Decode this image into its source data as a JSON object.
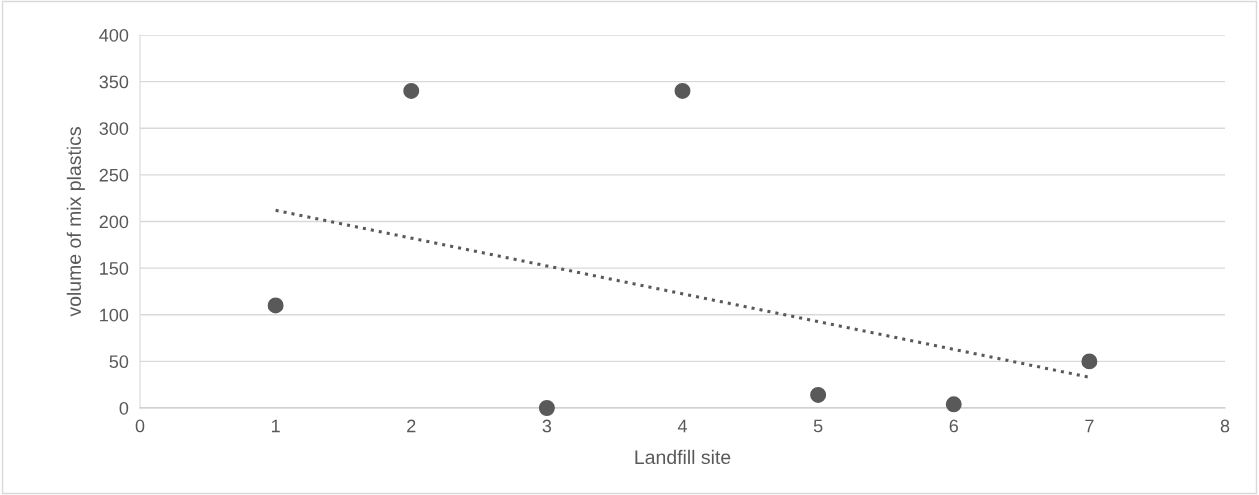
{
  "chart_data": {
    "type": "scatter",
    "xlabel": "Landfill site",
    "ylabel": "volume of mix plastics",
    "xlim": [
      0,
      8
    ],
    "xticks": [
      0,
      1,
      2,
      3,
      4,
      5,
      6,
      7,
      8
    ],
    "ylim": [
      0,
      400
    ],
    "yticks": [
      0,
      50,
      100,
      150,
      200,
      250,
      300,
      350,
      400
    ],
    "grid": "y",
    "marker": "circle",
    "series": [
      {
        "color": "#595959",
        "x": [
          1,
          2,
          3,
          4,
          5,
          6,
          7
        ],
        "values": [
          110,
          340,
          0,
          340,
          14,
          4,
          50
        ]
      },
      {
        "type": "line",
        "color": "#595959",
        "line_style": "dotted",
        "marker": "none",
        "x": [
          1,
          7
        ],
        "values": [
          212,
          33
        ]
      }
    ]
  }
}
